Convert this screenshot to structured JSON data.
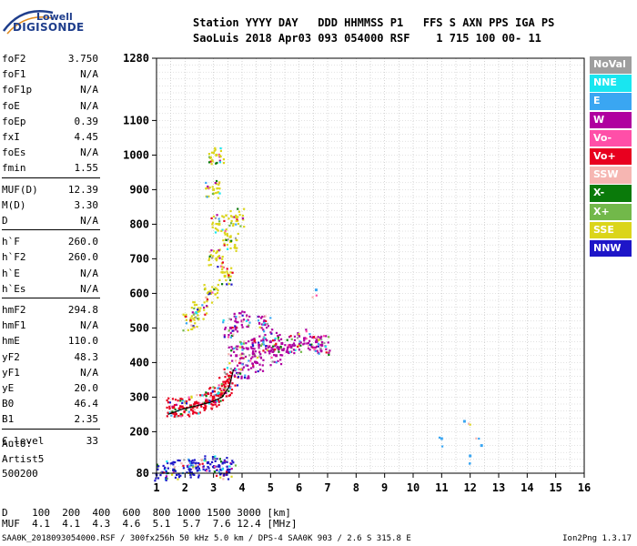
{
  "logo": {
    "line1": "Lowell",
    "line2": "DIGISONDE"
  },
  "header": {
    "labels": "Station YYYY DAY   DDD HHMMSS P1   FFS S AXN PPS IGA PS",
    "values": "SaoLuis 2018 Apr03 093 054000 RSF    1 715 100 00- 11"
  },
  "params": [
    {
      "k": "foF2",
      "v": "3.750"
    },
    {
      "k": "foF1",
      "v": "N/A"
    },
    {
      "k": "foF1p",
      "v": "N/A"
    },
    {
      "k": "foE",
      "v": "N/A"
    },
    {
      "k": "foEp",
      "v": "0.39"
    },
    {
      "k": "fxI",
      "v": "4.45"
    },
    {
      "k": "foEs",
      "v": "N/A"
    },
    {
      "k": "fmin",
      "v": "1.55"
    },
    {
      "k": "MUF(D)",
      "v": "12.39"
    },
    {
      "k": "M(D)",
      "v": "3.30"
    },
    {
      "k": "D",
      "v": "N/A"
    },
    {
      "k": "h`F",
      "v": "260.0"
    },
    {
      "k": "h`F2",
      "v": "260.0"
    },
    {
      "k": "h`E",
      "v": "N/A"
    },
    {
      "k": "h`Es",
      "v": "N/A"
    },
    {
      "k": "hmF2",
      "v": "294.8"
    },
    {
      "k": "hmF1",
      "v": "N/A"
    },
    {
      "k": "hmE",
      "v": "110.0"
    },
    {
      "k": "yF2",
      "v": "48.3"
    },
    {
      "k": "yF1",
      "v": "N/A"
    },
    {
      "k": "yE",
      "v": "20.0"
    },
    {
      "k": "B0",
      "v": "46.4"
    },
    {
      "k": "B1",
      "v": "2.35"
    },
    {
      "k": "C-level",
      "v": "33"
    }
  ],
  "auto": [
    "Auto:",
    "Artist5",
    "500200"
  ],
  "legend": [
    {
      "label": "NoVal",
      "color": "#9e9e9e"
    },
    {
      "label": "NNE",
      "color": "#19e6f0"
    },
    {
      "label": "E",
      "color": "#3aa6f2"
    },
    {
      "label": "W",
      "color": "#b0009f"
    },
    {
      "label": "Vo-",
      "color": "#ff4fa8"
    },
    {
      "label": "Vo+",
      "color": "#e8001f"
    },
    {
      "label": "SSW",
      "color": "#f6b6b2"
    },
    {
      "label": "X-",
      "color": "#0a7a0a"
    },
    {
      "label": "X+",
      "color": "#72b84a"
    },
    {
      "label": "SSE",
      "color": "#dbd51a"
    },
    {
      "label": "NNW",
      "color": "#1e16c8"
    }
  ],
  "muf": {
    "d_row": "D    100  200  400  600  800 1000 1500 3000 [km]",
    "m_row": "MUF  4.1  4.1  4.3  4.6  5.1  5.7  7.6 12.4 [MHz]"
  },
  "footer": "SAA0K_2018093054000.RSF / 300fx256h 50 kHz 5.0 km / DPS-4 SAA0K 903 / 2.6 S 315.8 E",
  "version": "Ion2Png 1.3.17",
  "chart_data": {
    "type": "scatter",
    "xlim": [
      1,
      16
    ],
    "ylim": [
      80,
      1280
    ],
    "x_ticks": [
      1,
      2,
      3,
      4,
      5,
      6,
      7,
      8,
      9,
      10,
      11,
      12,
      13,
      14,
      15,
      16
    ],
    "y_ticks": [
      80,
      200,
      300,
      400,
      500,
      600,
      700,
      800,
      900,
      1000,
      1100,
      1280
    ],
    "grid": true,
    "x_tick_labels": [
      "1",
      "2",
      "3",
      "4",
      "5",
      "6",
      "7",
      "8",
      "9",
      "10",
      "11",
      "12",
      "13",
      "14",
      "15",
      "16"
    ],
    "y_tick_labels": [
      "80",
      "200",
      "300",
      "400",
      "500",
      "600",
      "700",
      "800",
      "900",
      "1000",
      "1100",
      "1280"
    ],
    "echo_regions": [
      {
        "name": "F-trace-lower",
        "color": "#e8001f",
        "points": [
          [
            1.6,
            270
          ],
          [
            1.9,
            272
          ],
          [
            2.2,
            275
          ],
          [
            2.5,
            280
          ],
          [
            2.8,
            290
          ],
          [
            3.0,
            300
          ],
          [
            3.2,
            310
          ],
          [
            3.4,
            330
          ],
          [
            3.6,
            360
          ]
        ]
      },
      {
        "name": "F-trace-W",
        "color": "#b0009f",
        "points": [
          [
            3.8,
            420
          ],
          [
            4.2,
            440
          ],
          [
            4.6,
            450
          ],
          [
            5.0,
            460
          ],
          [
            5.4,
            455
          ],
          [
            5.8,
            450
          ],
          [
            6.2,
            470
          ],
          [
            6.6,
            460
          ],
          [
            6.8,
            450
          ],
          [
            4.0,
            380
          ],
          [
            4.5,
            400
          ],
          [
            5.2,
            420
          ],
          [
            3.6,
            500
          ],
          [
            4.0,
            520
          ],
          [
            4.8,
            510
          ]
        ]
      },
      {
        "name": "multi-hop-column",
        "color": "#dbd51a",
        "points": [
          [
            2.9,
            600
          ],
          [
            3.1,
            700
          ],
          [
            3.2,
            800
          ],
          [
            3.0,
            900
          ],
          [
            3.1,
            1000
          ],
          [
            3.4,
            650
          ],
          [
            3.6,
            750
          ],
          [
            3.8,
            820
          ],
          [
            2.5,
            550
          ],
          [
            2.2,
            520
          ]
        ]
      },
      {
        "name": "low-echo-band",
        "color": "#1e16c8",
        "points": [
          [
            1.2,
            82
          ],
          [
            1.6,
            90
          ],
          [
            2.1,
            100
          ],
          [
            2.4,
            95
          ],
          [
            2.8,
            110
          ],
          [
            3.2,
            100
          ],
          [
            3.5,
            90
          ]
        ]
      },
      {
        "name": "scattered-points",
        "color": "#3aa6f2",
        "points": [
          [
            6.6,
            610
          ],
          [
            11.0,
            180
          ],
          [
            12.4,
            160
          ],
          [
            11.8,
            230
          ],
          [
            12.0,
            130
          ]
        ]
      }
    ],
    "profile_curve": [
      [
        1.4,
        250
      ],
      [
        1.9,
        265
      ],
      [
        2.4,
        275
      ],
      [
        2.9,
        285
      ],
      [
        3.3,
        300
      ],
      [
        3.55,
        330
      ],
      [
        3.7,
        380
      ]
    ]
  }
}
